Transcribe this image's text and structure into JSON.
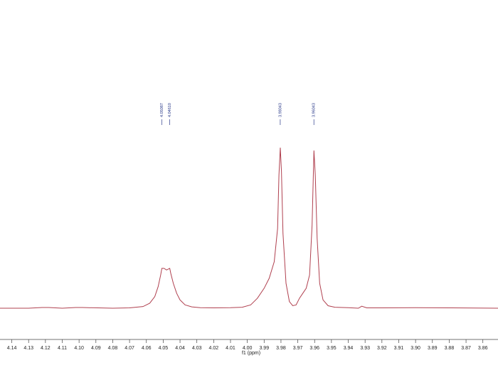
{
  "chart_data": {
    "type": "line",
    "color": "#b0404f",
    "x_label": "f1 (ppm)",
    "x": [
      4.147,
      4.13,
      4.122,
      4.118,
      4.11,
      4.102,
      4.098,
      4.08,
      4.07,
      4.062,
      4.058,
      4.055,
      4.053,
      4.0515,
      4.0508,
      4.0495,
      4.048,
      4.0461,
      4.0455,
      4.044,
      4.042,
      4.04,
      4.037,
      4.033,
      4.028,
      4.02,
      4.01,
      4.003,
      3.998,
      3.994,
      3.99,
      3.987,
      3.984,
      3.982,
      3.9812,
      3.9804,
      3.9797,
      3.9788,
      3.977,
      3.975,
      3.973,
      3.971,
      3.969,
      3.967,
      3.965,
      3.963,
      3.9615,
      3.9604,
      3.9596,
      3.9585,
      3.957,
      3.955,
      3.952,
      3.948,
      3.94,
      3.934,
      3.932,
      3.929,
      3.92,
      3.9,
      3.88,
      3.851
    ],
    "values": [
      0,
      0,
      0.4,
      0.4,
      0,
      0.4,
      0.4,
      0,
      0.2,
      1,
      3,
      7,
      13,
      20,
      24,
      24,
      23,
      24,
      21,
      15,
      9,
      5,
      2,
      0.8,
      0.3,
      0.2,
      0.3,
      0.6,
      2,
      6,
      12,
      18,
      28,
      48,
      80,
      96.6,
      82,
      45,
      15,
      4,
      1.5,
      2,
      6,
      9,
      12,
      20,
      50,
      94.9,
      80,
      42,
      15,
      5,
      1.5,
      0.6,
      0.3,
      0,
      1.2,
      0.2,
      0.2,
      0.3,
      0.2,
      0
    ],
    "xlim": [
      4.147,
      3.851
    ],
    "ylim": [
      0,
      100
    ],
    "xticks": [
      4.14,
      4.13,
      4.12,
      4.11,
      {
        "value": 4.1,
        "label": "4.10"
      },
      4.09,
      4.08,
      4.07,
      4.06,
      4.05,
      4.04,
      4.03,
      4.02,
      4.01,
      {
        "value": 4.0,
        "label": "4.00"
      },
      3.99,
      3.98,
      3.97,
      3.96,
      3.95,
      3.94,
      3.93,
      3.92,
      3.91,
      {
        "value": 3.9,
        "label": "3.90"
      },
      3.89,
      3.88,
      3.87,
      3.86
    ],
    "peak_labels": [
      {
        "value": 4.05087,
        "label": "4.05087"
      },
      {
        "value": 4.0461,
        "label": "4.04610"
      },
      {
        "value": 3.98043,
        "label": "3.98043"
      },
      {
        "value": 3.96043,
        "label": "3.96043"
      }
    ]
  }
}
